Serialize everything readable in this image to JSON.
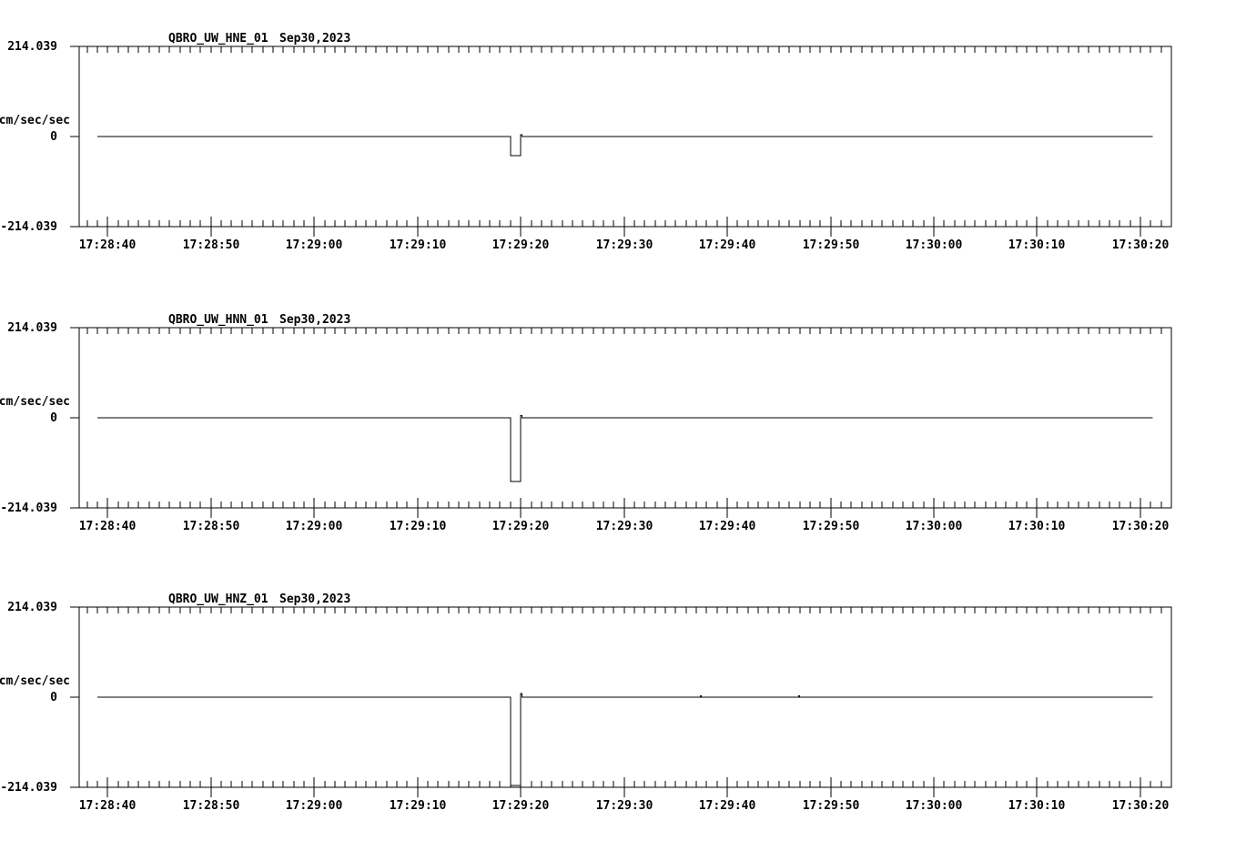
{
  "figure": {
    "background_color": "#ffffff",
    "line_color": "#000000",
    "text_color": "#000000"
  },
  "chart_data": {
    "type": "line",
    "subtype": "seismogram-strip-chart",
    "time_axis": {
      "tick_labels": [
        "17:28:40",
        "17:28:50",
        "17:29:00",
        "17:29:10",
        "17:29:20",
        "17:29:30",
        "17:29:40",
        "17:29:50",
        "17:30:00",
        "17:30:10",
        "17:30:20"
      ],
      "major_interval_sec": 10,
      "minor_interval_sec": 1,
      "start_offset_sec": -2.76,
      "end_offset_sec": 103.0,
      "reference_label": "17:28:40"
    },
    "value_axis": {
      "unit": "cm/sec/sec",
      "min": -214.039,
      "max": 214.039,
      "max_label": "214.039",
      "zero_label": "0",
      "min_label": "-214.039"
    },
    "panels": [
      {
        "station_label": "QBRO_UW_HNE_01",
        "date_label": "Sep30,2023",
        "trace_segments": [
          [
            -1.0,
            39.0,
            0
          ],
          [
            39.0,
            40.0,
            -45
          ],
          [
            40.0,
            40.1,
            4
          ],
          [
            40.1,
            101.2,
            0
          ]
        ]
      },
      {
        "station_label": "QBRO_UW_HNN_01",
        "date_label": "Sep30,2023",
        "trace_segments": [
          [
            -1.0,
            39.0,
            0
          ],
          [
            39.0,
            40.0,
            -151
          ],
          [
            40.0,
            40.1,
            5
          ],
          [
            40.1,
            101.2,
            0
          ]
        ]
      },
      {
        "station_label": "QBRO_UW_HNZ_01",
        "date_label": "Sep30,2023",
        "trace_segments": [
          [
            -1.0,
            39.0,
            0
          ],
          [
            39.0,
            40.0,
            -210
          ],
          [
            40.0,
            40.1,
            9
          ],
          [
            40.1,
            57.4,
            0
          ],
          [
            57.4,
            57.5,
            3
          ],
          [
            57.5,
            66.9,
            0
          ],
          [
            66.9,
            67.0,
            3
          ],
          [
            67.0,
            101.2,
            0
          ]
        ]
      }
    ]
  }
}
